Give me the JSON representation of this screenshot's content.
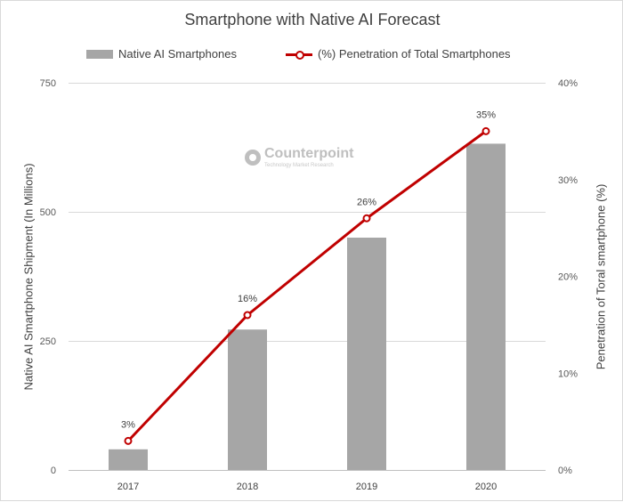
{
  "chart_data": {
    "type": "bar+line",
    "title": "Smartphone with Native AI Forecast",
    "categories": [
      "2017",
      "2018",
      "2019",
      "2020"
    ],
    "series": [
      {
        "name": "Native AI Smartphones",
        "type": "bar",
        "axis": "left",
        "values": [
          40,
          272,
          450,
          632
        ],
        "color": "#a6a6a6"
      },
      {
        "name": "(%) Penetration of Total Smartphones",
        "type": "line",
        "axis": "right",
        "values": [
          3,
          16,
          26,
          35
        ],
        "data_labels": [
          "3%",
          "16%",
          "26%",
          "35%"
        ],
        "color": "#c00000"
      }
    ],
    "ylabel_left": "Native AI Smartphone Shipment (In Millions)",
    "ylabel_right": "Penetration of Toral smartphone (%)",
    "ylim_left": [
      0,
      750
    ],
    "yticks_left": [
      0,
      250,
      500,
      750
    ],
    "ytick_labels_left": [
      "0",
      "250",
      "500",
      "750"
    ],
    "ylim_right": [
      0,
      40
    ],
    "yticks_right": [
      0,
      10,
      20,
      30,
      40
    ],
    "ytick_labels_right": [
      "0%",
      "10%",
      "20%",
      "30%",
      "40%"
    ],
    "grid": true,
    "legend": "top"
  },
  "watermark": {
    "name": "Counterpoint",
    "tagline": "Technology Market Research"
  }
}
